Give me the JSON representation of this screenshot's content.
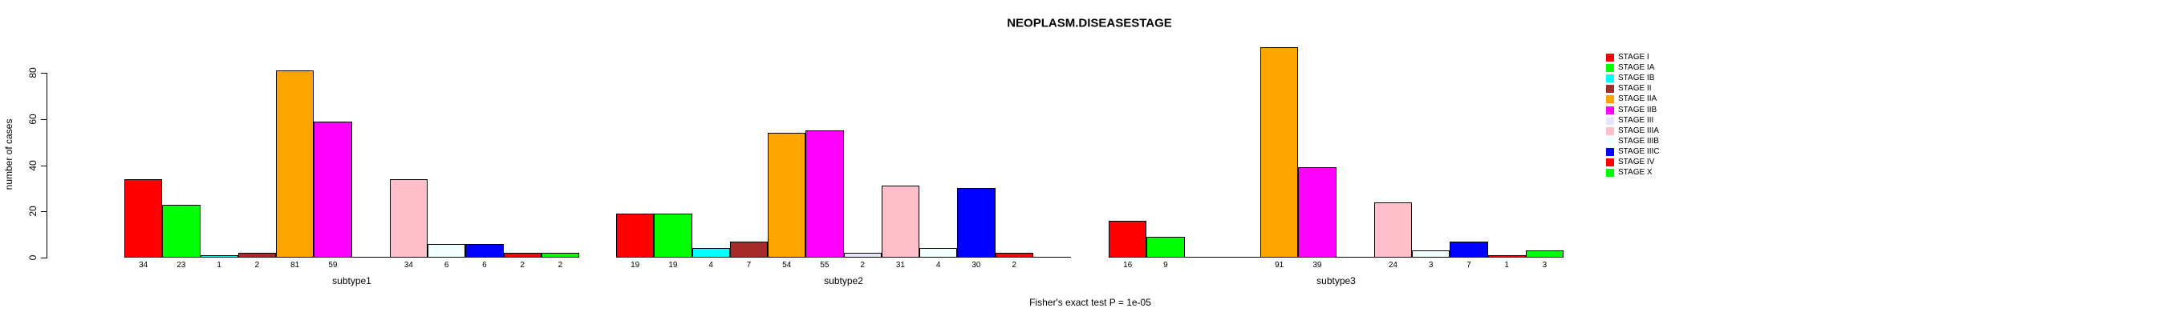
{
  "chart_data": {
    "type": "bar",
    "title": "NEOPLASM.DISEASESTAGE",
    "xlabel": "",
    "ylabel": "number of cases",
    "categories": [
      "subtype1",
      "subtype2",
      "subtype3"
    ],
    "series": [
      {
        "name": "STAGE I",
        "color": "#FF0000",
        "values": [
          34,
          19,
          16
        ]
      },
      {
        "name": "STAGE IA",
        "color": "#00FF00",
        "values": [
          23,
          19,
          9
        ]
      },
      {
        "name": "STAGE IB",
        "color": "#00FFFF",
        "values": [
          1,
          4,
          0
        ]
      },
      {
        "name": "STAGE II",
        "color": "#A52A2A",
        "values": [
          2,
          7,
          0
        ]
      },
      {
        "name": "STAGE IIA",
        "color": "#FFA500",
        "values": [
          81,
          54,
          91
        ]
      },
      {
        "name": "STAGE IIB",
        "color": "#FF00FF",
        "values": [
          59,
          55,
          39
        ]
      },
      {
        "name": "STAGE III",
        "color": "#E6E6FA",
        "values": [
          0,
          2,
          0
        ]
      },
      {
        "name": "STAGE IIIA",
        "color": "#FFC0CB",
        "values": [
          34,
          31,
          24
        ]
      },
      {
        "name": "STAGE IIIB",
        "color": "#F0FFFF",
        "values": [
          6,
          4,
          3
        ]
      },
      {
        "name": "STAGE IIIC",
        "color": "#0000FF",
        "values": [
          6,
          30,
          7
        ]
      },
      {
        "name": "STAGE IV",
        "color": "#FF0000",
        "values": [
          2,
          2,
          1
        ]
      },
      {
        "name": "STAGE X",
        "color": "#00FF00",
        "values": [
          2,
          0,
          3
        ]
      }
    ],
    "yticks": [
      0,
      20,
      40,
      60,
      80
    ],
    "ylim": [
      0,
      94
    ],
    "grid": false,
    "bar_borders": true,
    "value_labels_under_bars": true,
    "zero_value_labels_hidden": true,
    "legend_position": "right",
    "annotation": "Fisher's exact test P = 1e-05"
  }
}
